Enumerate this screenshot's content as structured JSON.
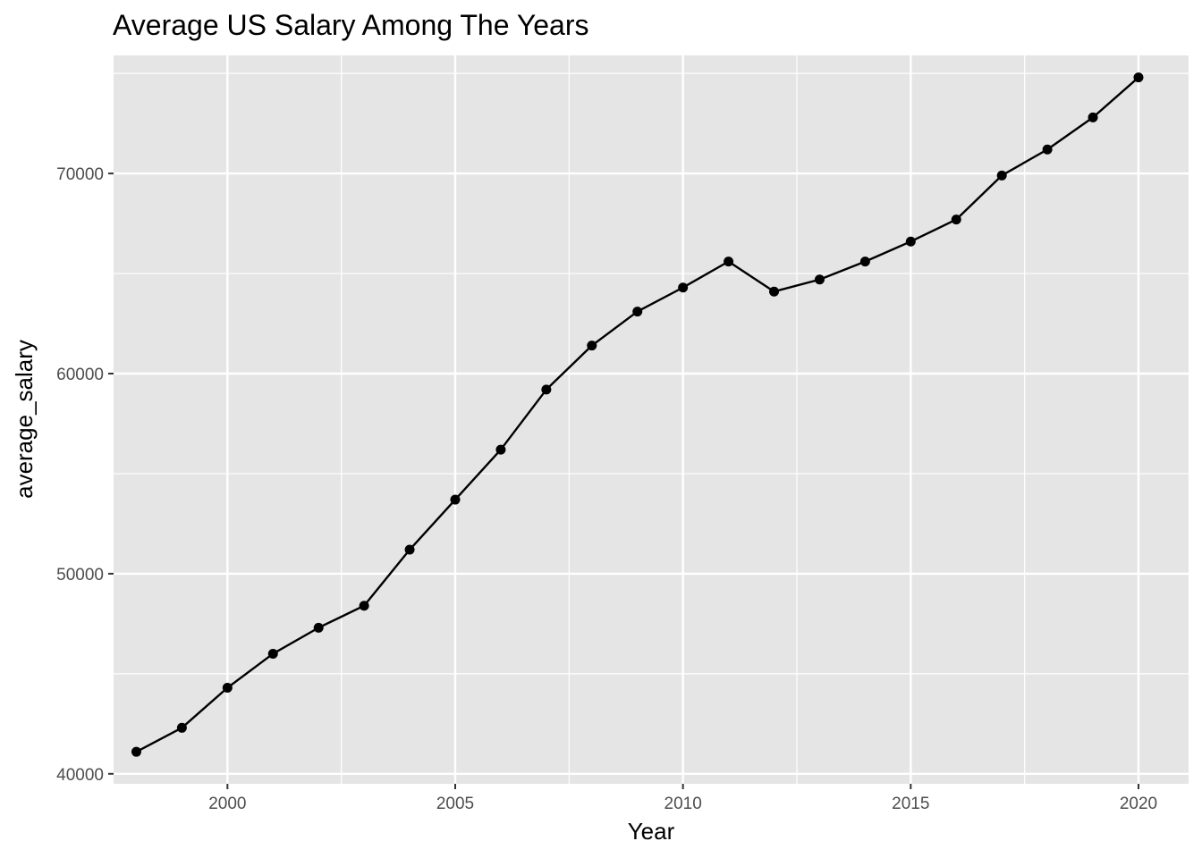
{
  "chart_data": {
    "type": "line",
    "title": "Average US Salary Among The Years",
    "xlabel": "Year",
    "ylabel": "average_salary",
    "xlim": [
      1997.5,
      2021.1
    ],
    "ylim": [
      39500,
      75900
    ],
    "x_ticks": [
      2000,
      2005,
      2010,
      2015,
      2020
    ],
    "y_ticks": [
      40000,
      50000,
      60000,
      70000
    ],
    "x_tick_labels": [
      "2000",
      "2005",
      "2010",
      "2015",
      "2020"
    ],
    "y_tick_labels": [
      "40000",
      "50000",
      "60000",
      "70000"
    ],
    "grid": true,
    "legend": "none",
    "x": [
      1998,
      1999,
      2000,
      2001,
      2002,
      2003,
      2004,
      2005,
      2006,
      2007,
      2008,
      2009,
      2010,
      2011,
      2012,
      2013,
      2014,
      2015,
      2016,
      2017,
      2018,
      2019,
      2020
    ],
    "series": [
      {
        "values": [
          41100,
          42300,
          44300,
          46000,
          47300,
          48400,
          51200,
          53700,
          56200,
          59200,
          61400,
          63100,
          64300,
          65600,
          64100,
          64700,
          65600,
          66600,
          67700,
          69900,
          71200,
          72800,
          74800
        ]
      }
    ],
    "colors": {
      "panel_background": "#e5e5e5",
      "grid_major": "#ffffff",
      "line": "#000000",
      "point": "#000000",
      "tick_text": "#4d4d4d"
    }
  }
}
